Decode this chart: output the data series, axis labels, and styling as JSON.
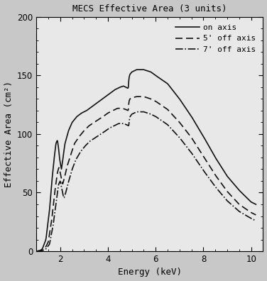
{
  "title": "MECS Effective Area (3 units)",
  "xlabel": "Energy (keV)",
  "ylabel": "Effective Area (cm²)",
  "xlim": [
    1.0,
    10.5
  ],
  "ylim": [
    0,
    200
  ],
  "xticks": [
    2,
    4,
    6,
    8,
    10
  ],
  "yticks": [
    0,
    50,
    100,
    150,
    200
  ],
  "bg_color": "#e8e8e8",
  "fig_color": "#c8c8c8",
  "legend": {
    "labels": [
      "on axis",
      "5' off axis",
      "7' off axis"
    ],
    "loc": "upper right"
  },
  "curves": {
    "on_axis": {
      "color": "#111111",
      "linestyle": "solid",
      "linewidth": 1.2,
      "on_axis_pts": [
        [
          1.0,
          0.0
        ],
        [
          1.15,
          0.5
        ],
        [
          1.25,
          2
        ],
        [
          1.4,
          10
        ],
        [
          1.55,
          35
        ],
        [
          1.65,
          60
        ],
        [
          1.75,
          80
        ],
        [
          1.82,
          92
        ],
        [
          1.88,
          95
        ],
        [
          1.93,
          88
        ],
        [
          1.98,
          78
        ],
        [
          2.05,
          70
        ],
        [
          2.1,
          77
        ],
        [
          2.15,
          85
        ],
        [
          2.2,
          92
        ],
        [
          2.35,
          103
        ],
        [
          2.5,
          110
        ],
        [
          2.7,
          115
        ],
        [
          2.9,
          118
        ],
        [
          3.1,
          120
        ],
        [
          3.3,
          123
        ],
        [
          3.5,
          126
        ],
        [
          3.7,
          129
        ],
        [
          3.9,
          132
        ],
        [
          4.1,
          135
        ],
        [
          4.3,
          138
        ],
        [
          4.5,
          140
        ],
        [
          4.65,
          141
        ],
        [
          4.75,
          140
        ],
        [
          4.85,
          139
        ],
        [
          4.88,
          148
        ],
        [
          4.92,
          151
        ],
        [
          5.0,
          153
        ],
        [
          5.2,
          155
        ],
        [
          5.5,
          155
        ],
        [
          5.8,
          153
        ],
        [
          6.0,
          150
        ],
        [
          6.5,
          143
        ],
        [
          7.0,
          130
        ],
        [
          7.5,
          115
        ],
        [
          8.0,
          98
        ],
        [
          8.5,
          80
        ],
        [
          9.0,
          64
        ],
        [
          9.5,
          52
        ],
        [
          10.0,
          42
        ],
        [
          10.2,
          40
        ]
      ]
    },
    "five_off": {
      "color": "#111111",
      "linestyle": "dashed",
      "linewidth": 1.2,
      "dashes": [
        6,
        3
      ],
      "five_off_pts": [
        [
          1.0,
          0.0
        ],
        [
          1.2,
          0.5
        ],
        [
          1.35,
          2
        ],
        [
          1.5,
          8
        ],
        [
          1.65,
          28
        ],
        [
          1.78,
          52
        ],
        [
          1.88,
          67
        ],
        [
          1.95,
          72
        ],
        [
          2.02,
          65
        ],
        [
          2.1,
          57
        ],
        [
          2.18,
          63
        ],
        [
          2.28,
          72
        ],
        [
          2.45,
          83
        ],
        [
          2.6,
          92
        ],
        [
          2.8,
          98
        ],
        [
          3.0,
          103
        ],
        [
          3.2,
          107
        ],
        [
          3.5,
          111
        ],
        [
          3.8,
          115
        ],
        [
          4.0,
          118
        ],
        [
          4.2,
          120
        ],
        [
          4.4,
          122
        ],
        [
          4.6,
          122
        ],
        [
          4.75,
          121
        ],
        [
          4.85,
          120
        ],
        [
          4.88,
          128
        ],
        [
          4.92,
          130
        ],
        [
          5.0,
          131
        ],
        [
          5.2,
          132
        ],
        [
          5.5,
          132
        ],
        [
          5.8,
          130
        ],
        [
          6.0,
          128
        ],
        [
          6.5,
          121
        ],
        [
          7.0,
          110
        ],
        [
          7.5,
          97
        ],
        [
          8.0,
          81
        ],
        [
          8.5,
          65
        ],
        [
          9.0,
          51
        ],
        [
          9.5,
          40
        ],
        [
          10.0,
          33
        ],
        [
          10.2,
          31
        ]
      ]
    },
    "seven_off": {
      "color": "#111111",
      "linestyle": "dashdot",
      "linewidth": 1.2,
      "seven_off_pts": [
        [
          1.0,
          0.0
        ],
        [
          1.25,
          0.5
        ],
        [
          1.4,
          2
        ],
        [
          1.55,
          6
        ],
        [
          1.7,
          22
        ],
        [
          1.83,
          42
        ],
        [
          1.93,
          57
        ],
        [
          2.0,
          60
        ],
        [
          2.08,
          52
        ],
        [
          2.15,
          45
        ],
        [
          2.23,
          50
        ],
        [
          2.33,
          58
        ],
        [
          2.5,
          70
        ],
        [
          2.65,
          78
        ],
        [
          2.85,
          85
        ],
        [
          3.05,
          90
        ],
        [
          3.25,
          94
        ],
        [
          3.55,
          98
        ],
        [
          3.85,
          102
        ],
        [
          4.05,
          105
        ],
        [
          4.25,
          107
        ],
        [
          4.45,
          109
        ],
        [
          4.65,
          109
        ],
        [
          4.78,
          108
        ],
        [
          4.87,
          107
        ],
        [
          4.9,
          113
        ],
        [
          4.93,
          115
        ],
        [
          5.0,
          117
        ],
        [
          5.2,
          119
        ],
        [
          5.5,
          119
        ],
        [
          5.8,
          117
        ],
        [
          6.0,
          115
        ],
        [
          6.5,
          108
        ],
        [
          7.0,
          97
        ],
        [
          7.5,
          84
        ],
        [
          8.0,
          69
        ],
        [
          8.5,
          55
        ],
        [
          9.0,
          43
        ],
        [
          9.5,
          34
        ],
        [
          10.0,
          28
        ],
        [
          10.2,
          26
        ]
      ]
    }
  }
}
